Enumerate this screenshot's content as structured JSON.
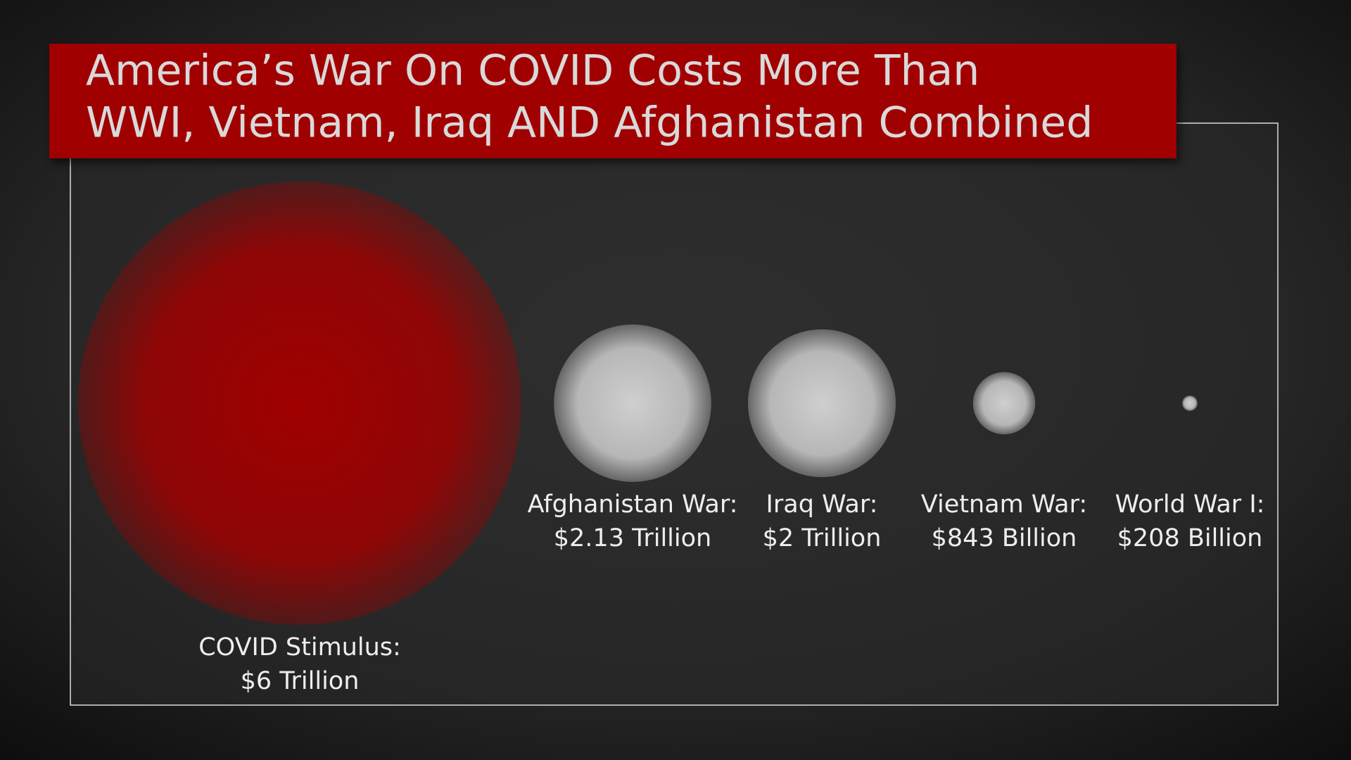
{
  "chart_data": {
    "type": "bubble",
    "title": [
      "America’s War On COVID Costs More Than",
      "WWI, Vietnam, Iraq AND Afghanistan Combined"
    ],
    "categories": [
      "COVID Stimulus:",
      "Afghanistan War:",
      "Iraq War:",
      "Vietnam War:",
      "World War I:"
    ],
    "values": [
      6000000000000,
      2130000000000,
      2000000000000,
      843000000000,
      208000000000
    ],
    "value_labels": [
      "$6 Trillion",
      "$2.13 Trillion",
      "$2 Trillion",
      "$843 Billion",
      "$208 Billion"
    ],
    "colors": [
      "#a00000",
      "#cfcfcf",
      "#cfcfcf",
      "#cfcfcf",
      "#cfcfcf"
    ]
  }
}
